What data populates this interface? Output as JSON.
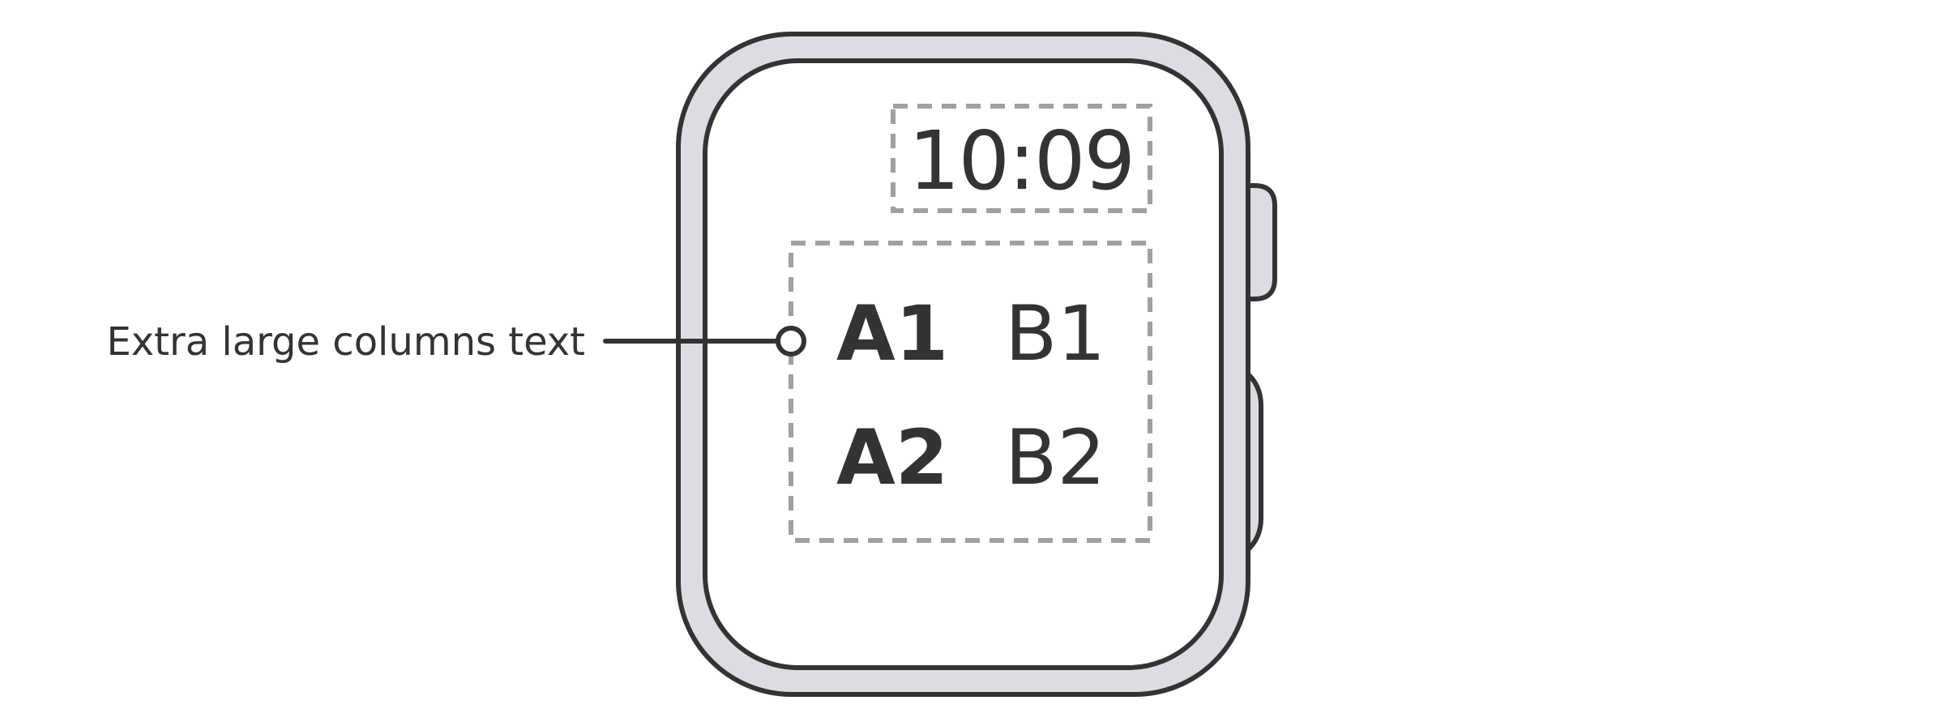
{
  "annotation": {
    "label": "Extra large columns text"
  },
  "watch": {
    "time": "10:09",
    "columns": {
      "a1": "A1",
      "b1": "B1",
      "a2": "A2",
      "b2": "B2"
    }
  },
  "colors": {
    "outline": "#333333",
    "case_fill": "#dcdde2",
    "screen_fill": "#ffffff",
    "dashed_guide": "#a0a0a0"
  }
}
